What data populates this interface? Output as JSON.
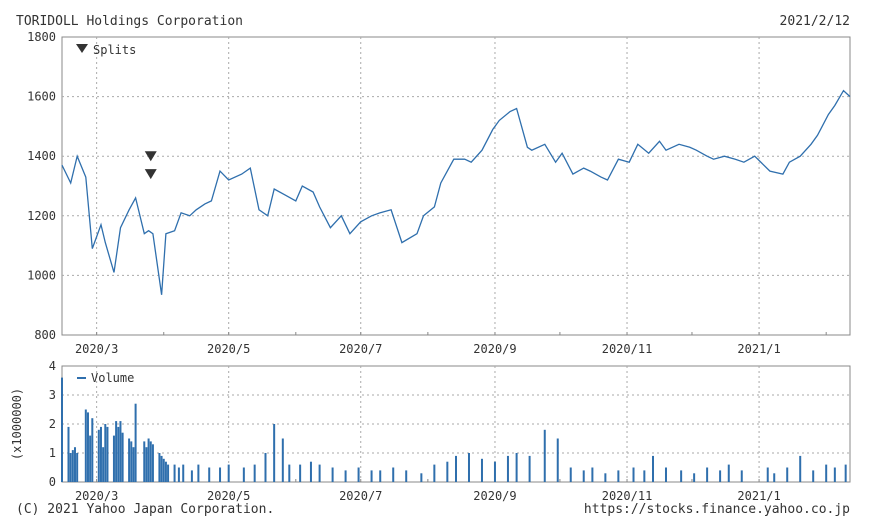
{
  "header": {
    "company": "TORIDOLL Holdings Corporation",
    "date": "2021/2/12"
  },
  "footer": {
    "copyright": "(C) 2021 Yahoo Japan Corporation.",
    "url": "https://stocks.finance.yahoo.co.jp"
  },
  "colors": {
    "line": "#2f6fad",
    "volume": "#2f6fad",
    "marker": "#333333"
  },
  "chart_data": [
    {
      "type": "line",
      "legend": "Splits",
      "legend_marker": "down-triangle-icon",
      "ylim": [
        800,
        1800
      ],
      "yticks": [
        800,
        1000,
        1200,
        1400,
        1600,
        1800
      ],
      "xlim": [
        "2020-02-14",
        "2021-02-12"
      ],
      "grid": true,
      "x_ticks": [
        {
          "date": "2020-03-01",
          "label": "2020/3"
        },
        {
          "date": "2020-05-01",
          "label": "2020/5"
        },
        {
          "date": "2020-07-01",
          "label": "2020/7"
        },
        {
          "date": "2020-09-01",
          "label": "2020/9"
        },
        {
          "date": "2020-11-01",
          "label": "2020/11"
        },
        {
          "date": "2021-01-01",
          "label": "2021/1"
        }
      ],
      "splits": [
        {
          "date": "2020-03-26",
          "level": 1400
        },
        {
          "date": "2020-03-26",
          "level": 1340
        }
      ],
      "x": [
        "2020-02-14",
        "2020-02-18",
        "2020-02-21",
        "2020-02-25",
        "2020-02-28",
        "2020-03-03",
        "2020-03-05",
        "2020-03-09",
        "2020-03-12",
        "2020-03-16",
        "2020-03-19",
        "2020-03-23",
        "2020-03-25",
        "2020-03-27",
        "2020-03-31",
        "2020-04-02",
        "2020-04-06",
        "2020-04-09",
        "2020-04-13",
        "2020-04-16",
        "2020-04-20",
        "2020-04-23",
        "2020-04-27",
        "2020-05-01",
        "2020-05-07",
        "2020-05-11",
        "2020-05-15",
        "2020-05-19",
        "2020-05-22",
        "2020-05-27",
        "2020-06-01",
        "2020-06-04",
        "2020-06-09",
        "2020-06-12",
        "2020-06-17",
        "2020-06-22",
        "2020-06-26",
        "2020-07-01",
        "2020-07-06",
        "2020-07-10",
        "2020-07-15",
        "2020-07-20",
        "2020-07-27",
        "2020-07-30",
        "2020-08-04",
        "2020-08-07",
        "2020-08-13",
        "2020-08-18",
        "2020-08-21",
        "2020-08-26",
        "2020-08-31",
        "2020-09-03",
        "2020-09-08",
        "2020-09-11",
        "2020-09-16",
        "2020-09-18",
        "2020-09-24",
        "2020-09-29",
        "2020-10-02",
        "2020-10-07",
        "2020-10-12",
        "2020-10-15",
        "2020-10-20",
        "2020-10-23",
        "2020-10-28",
        "2020-11-02",
        "2020-11-06",
        "2020-11-11",
        "2020-11-16",
        "2020-11-19",
        "2020-11-25",
        "2020-11-30",
        "2020-12-03",
        "2020-12-08",
        "2020-12-11",
        "2020-12-16",
        "2020-12-21",
        "2020-12-25",
        "2020-12-30",
        "2021-01-06",
        "2021-01-12",
        "2021-01-15",
        "2021-01-20",
        "2021-01-25",
        "2021-01-28",
        "2021-02-02",
        "2021-02-05",
        "2021-02-09",
        "2021-02-12"
      ],
      "values": [
        1370,
        1310,
        1400,
        1330,
        1090,
        1170,
        1110,
        1010,
        1160,
        1220,
        1260,
        1140,
        1150,
        1140,
        935,
        1140,
        1150,
        1210,
        1200,
        1220,
        1240,
        1250,
        1350,
        1320,
        1340,
        1360,
        1220,
        1200,
        1290,
        1270,
        1250,
        1300,
        1280,
        1230,
        1160,
        1200,
        1140,
        1180,
        1200,
        1210,
        1220,
        1110,
        1140,
        1200,
        1230,
        1310,
        1390,
        1390,
        1380,
        1420,
        1490,
        1520,
        1550,
        1560,
        1430,
        1420,
        1440,
        1380,
        1410,
        1340,
        1360,
        1350,
        1330,
        1320,
        1390,
        1380,
        1440,
        1410,
        1450,
        1420,
        1440,
        1430,
        1420,
        1400,
        1390,
        1400,
        1390,
        1380,
        1400,
        1350,
        1340,
        1380,
        1400,
        1440,
        1470,
        1540,
        1570,
        1620,
        1600
      ]
    },
    {
      "type": "bar",
      "legend": "Volume",
      "legend_marker": "line-icon",
      "ylabel": "(x1000000)",
      "ylim": [
        0,
        4
      ],
      "yticks": [
        0,
        1,
        2,
        3,
        4
      ],
      "x_ticks": [
        {
          "date": "2020-03-01",
          "label": "2020/3"
        },
        {
          "date": "2020-05-01",
          "label": "2020/5"
        },
        {
          "date": "2020-07-01",
          "label": "2020/7"
        },
        {
          "date": "2020-09-01",
          "label": "2020/9"
        },
        {
          "date": "2020-11-01",
          "label": "2020/11"
        },
        {
          "date": "2021-01-01",
          "label": "2021/1"
        }
      ],
      "x": [
        "2020-02-14",
        "2020-02-17",
        "2020-02-18",
        "2020-02-19",
        "2020-02-20",
        "2020-02-21",
        "2020-02-25",
        "2020-02-26",
        "2020-02-27",
        "2020-02-28",
        "2020-03-02",
        "2020-03-03",
        "2020-03-04",
        "2020-03-05",
        "2020-03-06",
        "2020-03-09",
        "2020-03-10",
        "2020-03-11",
        "2020-03-12",
        "2020-03-13",
        "2020-03-16",
        "2020-03-17",
        "2020-03-18",
        "2020-03-19",
        "2020-03-23",
        "2020-03-24",
        "2020-03-25",
        "2020-03-26",
        "2020-03-27",
        "2020-03-30",
        "2020-03-31",
        "2020-04-01",
        "2020-04-02",
        "2020-04-03",
        "2020-04-06",
        "2020-04-08",
        "2020-04-10",
        "2020-04-14",
        "2020-04-17",
        "2020-04-22",
        "2020-04-27",
        "2020-05-01",
        "2020-05-08",
        "2020-05-13",
        "2020-05-18",
        "2020-05-22",
        "2020-05-26",
        "2020-05-29",
        "2020-06-03",
        "2020-06-08",
        "2020-06-12",
        "2020-06-18",
        "2020-06-24",
        "2020-06-30",
        "2020-07-06",
        "2020-07-10",
        "2020-07-16",
        "2020-07-22",
        "2020-07-29",
        "2020-08-04",
        "2020-08-10",
        "2020-08-14",
        "2020-08-20",
        "2020-08-26",
        "2020-09-01",
        "2020-09-07",
        "2020-09-11",
        "2020-09-17",
        "2020-09-24",
        "2020-09-30",
        "2020-10-06",
        "2020-10-12",
        "2020-10-16",
        "2020-10-22",
        "2020-10-28",
        "2020-11-04",
        "2020-11-09",
        "2020-11-13",
        "2020-11-19",
        "2020-11-26",
        "2020-12-02",
        "2020-12-08",
        "2020-12-14",
        "2020-12-18",
        "2020-12-24",
        "2021-01-05",
        "2021-01-08",
        "2021-01-14",
        "2021-01-20",
        "2021-01-26",
        "2021-02-01",
        "2021-02-05",
        "2021-02-10"
      ],
      "values": [
        3.6,
        1.9,
        1.0,
        1.1,
        1.2,
        1.0,
        2.5,
        2.4,
        1.6,
        2.2,
        1.8,
        1.9,
        1.2,
        2.0,
        1.9,
        1.6,
        2.1,
        1.9,
        2.1,
        1.7,
        1.5,
        1.4,
        1.2,
        2.7,
        1.4,
        1.2,
        1.5,
        1.4,
        1.3,
        1.0,
        0.9,
        0.8,
        0.7,
        0.6,
        0.6,
        0.5,
        0.6,
        0.4,
        0.6,
        0.5,
        0.5,
        0.6,
        0.5,
        0.6,
        1.0,
        2.0,
        1.5,
        0.6,
        0.6,
        0.7,
        0.6,
        0.5,
        0.4,
        0.5,
        0.4,
        0.4,
        0.5,
        0.4,
        0.3,
        0.6,
        0.7,
        0.9,
        1.0,
        0.8,
        0.7,
        0.9,
        1.0,
        0.9,
        1.8,
        1.5,
        0.5,
        0.4,
        0.5,
        0.3,
        0.4,
        0.5,
        0.4,
        0.9,
        0.5,
        0.4,
        0.3,
        0.5,
        0.4,
        0.6,
        0.4,
        0.5,
        0.3,
        0.5,
        0.9,
        0.4,
        0.6,
        0.5,
        0.6
      ]
    }
  ]
}
